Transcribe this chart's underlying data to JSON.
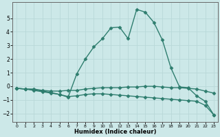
{
  "title": "",
  "xlabel": "Humidex (Indice chaleur)",
  "ylabel": "",
  "bg_color": "#cce8e8",
  "grid_color": "#c0dede",
  "line_color": "#2e7d6e",
  "xlim": [
    -0.5,
    23.5
  ],
  "ylim": [
    -2.6,
    6.2
  ],
  "yticks": [
    -2,
    -1,
    0,
    1,
    2,
    3,
    4,
    5
  ],
  "xticks": [
    0,
    1,
    2,
    3,
    4,
    5,
    6,
    7,
    8,
    9,
    10,
    11,
    12,
    13,
    14,
    15,
    16,
    17,
    18,
    19,
    20,
    21,
    22,
    23
  ],
  "line1_x": [
    0,
    1,
    2,
    3,
    4,
    5,
    6,
    7,
    8,
    9,
    10,
    11,
    12,
    13,
    14,
    15,
    16,
    17,
    18,
    19,
    20,
    21,
    22,
    23
  ],
  "line1_y": [
    -0.15,
    -0.2,
    -0.2,
    -0.3,
    -0.35,
    -0.35,
    -0.3,
    -0.3,
    -0.2,
    -0.15,
    -0.1,
    -0.1,
    -0.1,
    -0.05,
    -0.05,
    -0.0,
    -0.0,
    -0.05,
    -0.1,
    -0.1,
    -0.15,
    -0.2,
    -0.35,
    -0.5
  ],
  "line2_x": [
    0,
    1,
    2,
    3,
    4,
    5,
    6,
    7,
    8,
    9,
    10,
    11,
    12,
    13,
    14,
    15,
    16,
    17,
    18,
    19,
    20,
    21,
    22,
    23
  ],
  "line2_y": [
    -0.15,
    -0.2,
    -0.3,
    -0.4,
    -0.5,
    -0.6,
    -0.75,
    -0.7,
    -0.6,
    -0.55,
    -0.55,
    -0.6,
    -0.65,
    -0.7,
    -0.75,
    -0.8,
    -0.85,
    -0.9,
    -0.95,
    -1.0,
    -1.05,
    -1.1,
    -1.4,
    -2.1
  ],
  "line3_x": [
    0,
    1,
    2,
    3,
    4,
    5,
    6,
    7,
    8,
    9,
    10,
    11,
    12,
    13,
    14,
    15,
    16,
    17,
    18,
    19,
    20,
    21,
    22,
    23
  ],
  "line3_y": [
    -0.15,
    -0.2,
    -0.25,
    -0.35,
    -0.45,
    -0.6,
    -0.8,
    0.9,
    2.0,
    2.9,
    3.5,
    4.3,
    4.35,
    3.5,
    5.65,
    5.45,
    4.7,
    3.4,
    1.35,
    -0.05,
    -0.1,
    -0.7,
    -1.1,
    -2.1
  ],
  "marker": "D",
  "markersize": 2.5,
  "linewidth": 1.0
}
